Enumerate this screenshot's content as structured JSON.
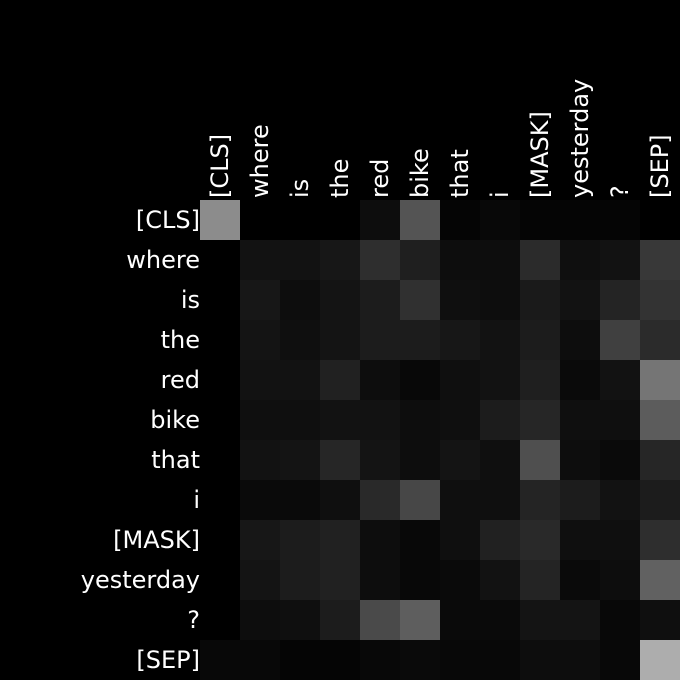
{
  "chart_data": {
    "type": "heatmap",
    "title": "",
    "xlabel": "",
    "ylabel": "",
    "colormap": "grayscale",
    "value_range": [
      0,
      1
    ],
    "background": "#000000",
    "label_color": "#ffffff",
    "x_labels": [
      "[CLS]",
      "where",
      "is",
      "the",
      "red",
      "bike",
      "that",
      "i",
      "[MASK]",
      "yesterday",
      "?",
      "[SEP]"
    ],
    "y_labels": [
      "[CLS]",
      "where",
      "is",
      "the",
      "red",
      "bike",
      "that",
      "i",
      "[MASK]",
      "yesterday",
      "?",
      "[SEP]"
    ],
    "values": [
      [
        0.55,
        0.0,
        0.0,
        0.0,
        0.05,
        0.33,
        0.02,
        0.03,
        0.02,
        0.02,
        0.02,
        0.0
      ],
      [
        0.0,
        0.07,
        0.07,
        0.09,
        0.18,
        0.12,
        0.05,
        0.05,
        0.17,
        0.06,
        0.07,
        0.22
      ],
      [
        0.0,
        0.09,
        0.05,
        0.08,
        0.11,
        0.19,
        0.06,
        0.05,
        0.1,
        0.07,
        0.14,
        0.2
      ],
      [
        0.0,
        0.08,
        0.06,
        0.08,
        0.11,
        0.11,
        0.09,
        0.07,
        0.11,
        0.05,
        0.25,
        0.17
      ],
      [
        0.0,
        0.07,
        0.07,
        0.13,
        0.05,
        0.03,
        0.06,
        0.07,
        0.12,
        0.04,
        0.07,
        0.46
      ],
      [
        0.0,
        0.06,
        0.06,
        0.07,
        0.07,
        0.05,
        0.06,
        0.11,
        0.15,
        0.06,
        0.06,
        0.36
      ],
      [
        0.0,
        0.07,
        0.08,
        0.15,
        0.08,
        0.05,
        0.08,
        0.06,
        0.31,
        0.05,
        0.04,
        0.15
      ],
      [
        0.0,
        0.04,
        0.04,
        0.06,
        0.16,
        0.28,
        0.06,
        0.06,
        0.14,
        0.11,
        0.07,
        0.11
      ],
      [
        0.0,
        0.09,
        0.11,
        0.13,
        0.05,
        0.03,
        0.06,
        0.13,
        0.16,
        0.06,
        0.06,
        0.18
      ],
      [
        0.0,
        0.08,
        0.11,
        0.13,
        0.05,
        0.03,
        0.04,
        0.07,
        0.14,
        0.04,
        0.05,
        0.38
      ],
      [
        0.0,
        0.05,
        0.06,
        0.11,
        0.29,
        0.37,
        0.04,
        0.04,
        0.08,
        0.08,
        0.03,
        0.06
      ],
      [
        0.03,
        0.03,
        0.02,
        0.02,
        0.03,
        0.04,
        0.03,
        0.03,
        0.05,
        0.05,
        0.03,
        0.68
      ]
    ]
  }
}
